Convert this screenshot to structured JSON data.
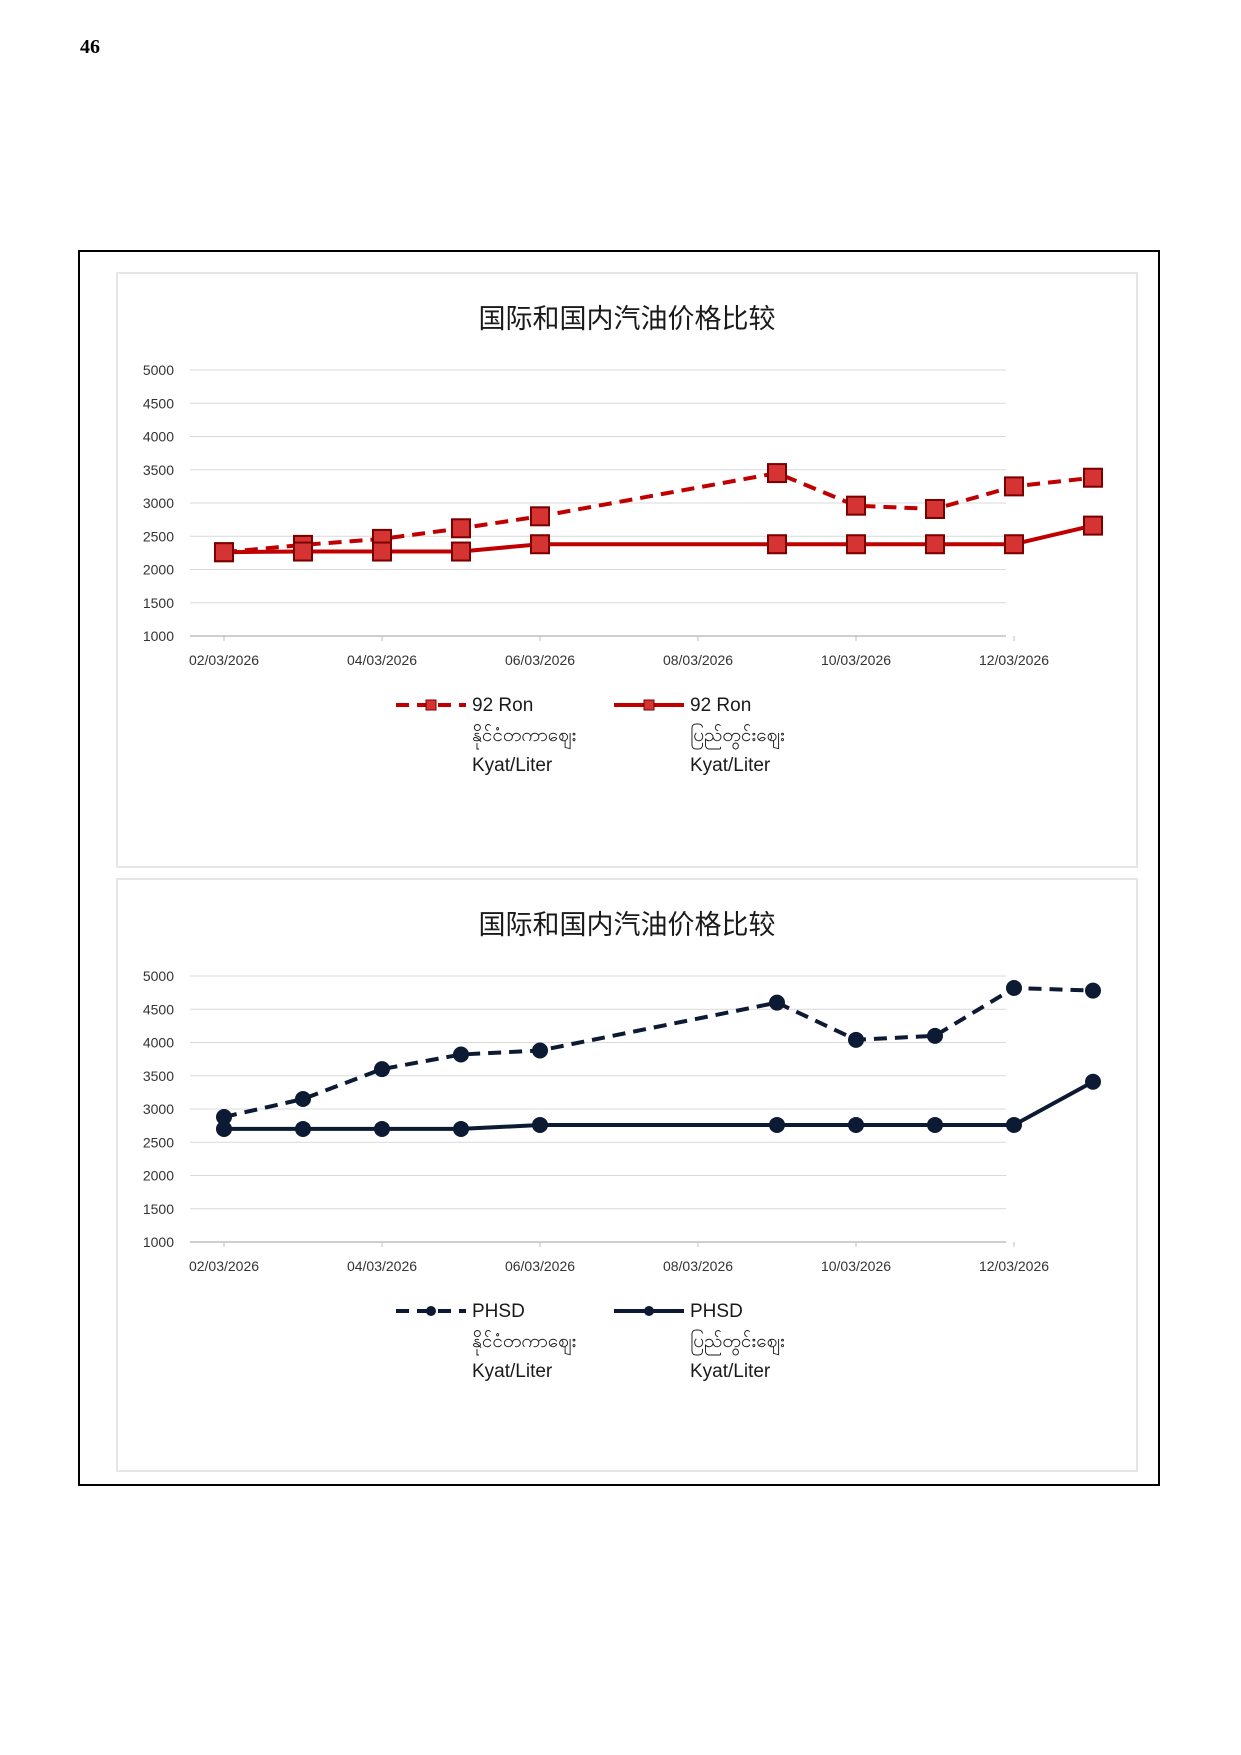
{
  "page_number": "46",
  "chart_data": [
    {
      "type": "line",
      "title": "国际和国内汽油价格比较",
      "xlabel": "",
      "ylabel": "",
      "ylim": [
        1000,
        5000
      ],
      "yticks": [
        "5000",
        "4500",
        "4000",
        "3500",
        "3000",
        "2500",
        "2000",
        "1500",
        "1000"
      ],
      "xticks": [
        "02/03/2026",
        "04/03/2026",
        "06/03/2026",
        "08/03/2026",
        "10/03/2026",
        "12/03/2026"
      ],
      "x": [
        "02/03/2026",
        "03/03/2026",
        "04/03/2026",
        "05/03/2026",
        "06/03/2026",
        "09/03/2026",
        "10/03/2026",
        "11/03/2026",
        "12/03/2026",
        "13/03/2026"
      ],
      "grid": true,
      "legend_position": "bottom",
      "colors": {
        "series": "#c00000",
        "marker": "#d63333"
      },
      "series": [
        {
          "name_lines": [
            "92 Ron",
            "နိုင်ငံတကာဈေး",
            "Kyat/Liter"
          ],
          "style": "dashed",
          "marker": "square",
          "values": [
            2260,
            2370,
            2460,
            2620,
            2800,
            3450,
            2960,
            2910,
            3250,
            3380
          ]
        },
        {
          "name_lines": [
            "92 Ron",
            "ပြည်တွင်းဈေး",
            "Kyat/Liter"
          ],
          "style": "solid",
          "marker": "square",
          "values": [
            2260,
            2270,
            2270,
            2270,
            2380,
            2380,
            2380,
            2380,
            2380,
            2660
          ]
        }
      ]
    },
    {
      "type": "line",
      "title": "国际和国内汽油价格比较",
      "xlabel": "",
      "ylabel": "",
      "ylim": [
        1000,
        5000
      ],
      "yticks": [
        "5000",
        "4500",
        "4000",
        "3500",
        "3000",
        "2500",
        "2000",
        "1500",
        "1000"
      ],
      "xticks": [
        "02/03/2026",
        "04/03/2026",
        "06/03/2026",
        "08/03/2026",
        "10/03/2026",
        "12/03/2026"
      ],
      "x": [
        "02/03/2026",
        "03/03/2026",
        "04/03/2026",
        "05/03/2026",
        "06/03/2026",
        "09/03/2026",
        "10/03/2026",
        "11/03/2026",
        "12/03/2026",
        "13/03/2026"
      ],
      "grid": true,
      "legend_position": "bottom",
      "colors": {
        "series": "#0d1a33",
        "marker": "#0d1a33"
      },
      "series": [
        {
          "name_lines": [
            "PHSD",
            "နိုင်ငံတကာဈေး",
            "Kyat/Liter"
          ],
          "style": "dashed",
          "marker": "circle",
          "values": [
            2880,
            3150,
            3600,
            3820,
            3880,
            4600,
            4040,
            4100,
            4820,
            4780
          ]
        },
        {
          "name_lines": [
            "PHSD",
            "ပြည်တွင်းဈေး",
            "Kyat/Liter"
          ],
          "style": "solid",
          "marker": "circle",
          "values": [
            2700,
            2700,
            2700,
            2700,
            2760,
            2760,
            2760,
            2760,
            2760,
            3410
          ]
        }
      ]
    }
  ]
}
